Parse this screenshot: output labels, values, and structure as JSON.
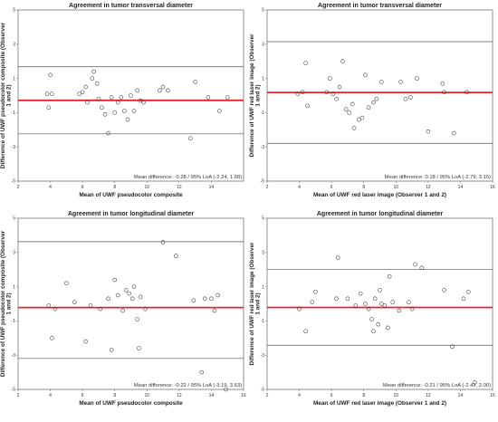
{
  "chart_data": [
    {
      "type": "scatter",
      "title": "Agreement in tumor transversal diameter",
      "xlabel": "Mean of UWF pseudocolor composite",
      "ylabel": "Difference of UWF pseudocolor composite (Observer 1 and 2)",
      "xlim": [
        2,
        16
      ],
      "ylim": [
        -5,
        5
      ],
      "xticks": [
        "2",
        "4",
        "6",
        "8",
        "10",
        "12",
        "14"
      ],
      "yticks": [
        "5",
        "3",
        "1",
        "-1",
        "-3",
        "-5"
      ],
      "mean_line": -0.28,
      "loa": [
        -2.24,
        1.68
      ],
      "annotation": "Mean difference: -0.28 / 95% LoA (-2.24, 1.68)",
      "points": [
        [
          3.8,
          0.1
        ],
        [
          3.9,
          -0.7
        ],
        [
          4.0,
          1.2
        ],
        [
          4.1,
          0.1
        ],
        [
          5.8,
          0.1
        ],
        [
          6.0,
          0.2
        ],
        [
          6.2,
          0.5
        ],
        [
          6.3,
          -0.4
        ],
        [
          6.6,
          1.0
        ],
        [
          6.7,
          1.4
        ],
        [
          6.9,
          0.7
        ],
        [
          7.0,
          -0.2
        ],
        [
          7.2,
          -0.7
        ],
        [
          7.4,
          -1.1
        ],
        [
          7.6,
          -2.2
        ],
        [
          7.8,
          -0.1
        ],
        [
          8.0,
          -1.0
        ],
        [
          8.2,
          -0.4
        ],
        [
          8.4,
          -0.1
        ],
        [
          8.6,
          -0.9
        ],
        [
          8.8,
          -1.4
        ],
        [
          9.0,
          0.0
        ],
        [
          9.2,
          -0.9
        ],
        [
          9.4,
          0.3
        ],
        [
          9.6,
          -0.3
        ],
        [
          9.8,
          -0.4
        ],
        [
          10.8,
          0.3
        ],
        [
          11.0,
          0.5
        ],
        [
          11.3,
          0.3
        ],
        [
          12.7,
          -2.5
        ],
        [
          13.0,
          0.8
        ],
        [
          13.8,
          -0.1
        ],
        [
          14.5,
          -0.9
        ],
        [
          15.0,
          -0.1
        ]
      ]
    },
    {
      "type": "scatter",
      "title": "Agreement in tumor transversal diameter",
      "xlabel": "Mean of UWF red laser image (Observer 1 and 2)",
      "ylabel": "Difference of UWF red laser image (Observer 1 and 2)",
      "xlim": [
        2,
        16
      ],
      "ylim": [
        -5,
        5
      ],
      "xticks": [
        "2",
        "4",
        "6",
        "8",
        "10",
        "12",
        "14",
        "16"
      ],
      "yticks": [
        "5",
        "3",
        "1",
        "-1",
        "-3",
        "-5"
      ],
      "mean_line": 0.18,
      "loa": [
        -2.79,
        3.15
      ],
      "annotation": "Mean difference: 0.18 / 95% LoA (-2.79, 3.15)",
      "points": [
        [
          3.9,
          0.1
        ],
        [
          4.2,
          0.2
        ],
        [
          4.4,
          1.9
        ],
        [
          4.5,
          -0.6
        ],
        [
          5.7,
          0.2
        ],
        [
          5.9,
          1.0
        ],
        [
          6.1,
          0.1
        ],
        [
          6.3,
          -0.2
        ],
        [
          6.5,
          0.5
        ],
        [
          6.7,
          2.0
        ],
        [
          6.9,
          -0.8
        ],
        [
          7.1,
          -1.0
        ],
        [
          7.3,
          -0.5
        ],
        [
          7.4,
          -1.9
        ],
        [
          7.7,
          -1.4
        ],
        [
          7.9,
          -1.3
        ],
        [
          8.1,
          1.2
        ],
        [
          8.3,
          -0.7
        ],
        [
          8.6,
          -0.4
        ],
        [
          8.8,
          -0.2
        ],
        [
          9.1,
          0.8
        ],
        [
          10.3,
          0.8
        ],
        [
          10.6,
          -0.2
        ],
        [
          10.9,
          -0.1
        ],
        [
          11.3,
          1.0
        ],
        [
          12.0,
          -2.1
        ],
        [
          12.9,
          0.7
        ],
        [
          13.0,
          0.2
        ],
        [
          13.6,
          -2.2
        ],
        [
          14.4,
          0.2
        ]
      ]
    },
    {
      "type": "scatter",
      "title": "Agreement in tumor longitudinal diameter",
      "xlabel": "Mean of UWF pseudocolor composite",
      "ylabel": "Difference of UWF pseudocolor composite (Observer 1 and 2)",
      "xlim": [
        2,
        16
      ],
      "ylim": [
        -5,
        5
      ],
      "xticks": [
        "2",
        "4",
        "6",
        "8",
        "10",
        "12",
        "14",
        "16"
      ],
      "yticks": [
        "5",
        "3",
        "1",
        "-1",
        "-3",
        "-5"
      ],
      "mean_line": -0.22,
      "loa": [
        -3.19,
        3.63
      ],
      "annotation": "Mean difference: -0.22 / 95% LoA (-3.19, 3.63)",
      "points": [
        [
          3.9,
          -0.1
        ],
        [
          4.1,
          -2.0
        ],
        [
          4.3,
          -0.3
        ],
        [
          5.0,
          1.2
        ],
        [
          5.5,
          0.1
        ],
        [
          6.2,
          -2.2
        ],
        [
          6.5,
          -0.1
        ],
        [
          7.1,
          -0.3
        ],
        [
          7.6,
          0.3
        ],
        [
          7.8,
          -2.7
        ],
        [
          8.0,
          1.4
        ],
        [
          8.2,
          0.5
        ],
        [
          8.5,
          -0.4
        ],
        [
          8.7,
          0.8
        ],
        [
          8.9,
          0.6
        ],
        [
          9.1,
          0.3
        ],
        [
          9.2,
          1.0
        ],
        [
          9.4,
          -0.9
        ],
        [
          9.5,
          -2.6
        ],
        [
          9.6,
          0.4
        ],
        [
          9.9,
          -0.3
        ],
        [
          11.0,
          3.6
        ],
        [
          11.8,
          2.8
        ],
        [
          12.9,
          0.2
        ],
        [
          13.4,
          -4.0
        ],
        [
          13.6,
          0.3
        ],
        [
          14.0,
          0.3
        ],
        [
          14.2,
          -0.4
        ],
        [
          14.4,
          0.5
        ],
        [
          14.9,
          -5.0
        ]
      ]
    },
    {
      "type": "scatter",
      "title": "Agreement in tumor longitudinal diameter",
      "xlabel": "Mean of UWF red laser image (Observer 1 and 2)",
      "ylabel": "Difference of UWF red laser image (Observer 1 and 2)",
      "xlim": [
        2,
        16
      ],
      "ylim": [
        -5,
        5
      ],
      "xticks": [
        "2",
        "4",
        "6",
        "8",
        "10",
        "12",
        "14",
        "16"
      ],
      "yticks": [
        "5",
        "3",
        "1",
        "-1",
        "-3",
        "-5"
      ],
      "mean_line": -0.21,
      "loa": [
        -2.42,
        2.0
      ],
      "annotation": "Mean difference: -0.21 / 95% LoA (-2.42, 2.00)",
      "points": [
        [
          4.0,
          -0.3
        ],
        [
          4.4,
          -1.6
        ],
        [
          4.8,
          0.1
        ],
        [
          5.0,
          0.7
        ],
        [
          6.3,
          0.3
        ],
        [
          6.4,
          2.7
        ],
        [
          7.0,
          0.3
        ],
        [
          7.5,
          -0.1
        ],
        [
          7.8,
          0.6
        ],
        [
          8.1,
          0.0
        ],
        [
          8.3,
          -0.3
        ],
        [
          8.5,
          -0.9
        ],
        [
          8.6,
          -1.6
        ],
        [
          8.7,
          0.3
        ],
        [
          8.9,
          -1.2
        ],
        [
          9.0,
          0.8
        ],
        [
          9.1,
          0.0
        ],
        [
          9.3,
          -0.1
        ],
        [
          9.5,
          -1.4
        ],
        [
          9.6,
          1.6
        ],
        [
          9.8,
          0.1
        ],
        [
          10.2,
          -0.4
        ],
        [
          10.8,
          0.1
        ],
        [
          11.0,
          -0.3
        ],
        [
          11.2,
          2.3
        ],
        [
          11.6,
          2.1
        ],
        [
          13.0,
          0.8
        ],
        [
          13.5,
          -2.5
        ],
        [
          14.2,
          0.3
        ],
        [
          14.5,
          0.7
        ],
        [
          14.9,
          -4.6
        ]
      ]
    }
  ]
}
